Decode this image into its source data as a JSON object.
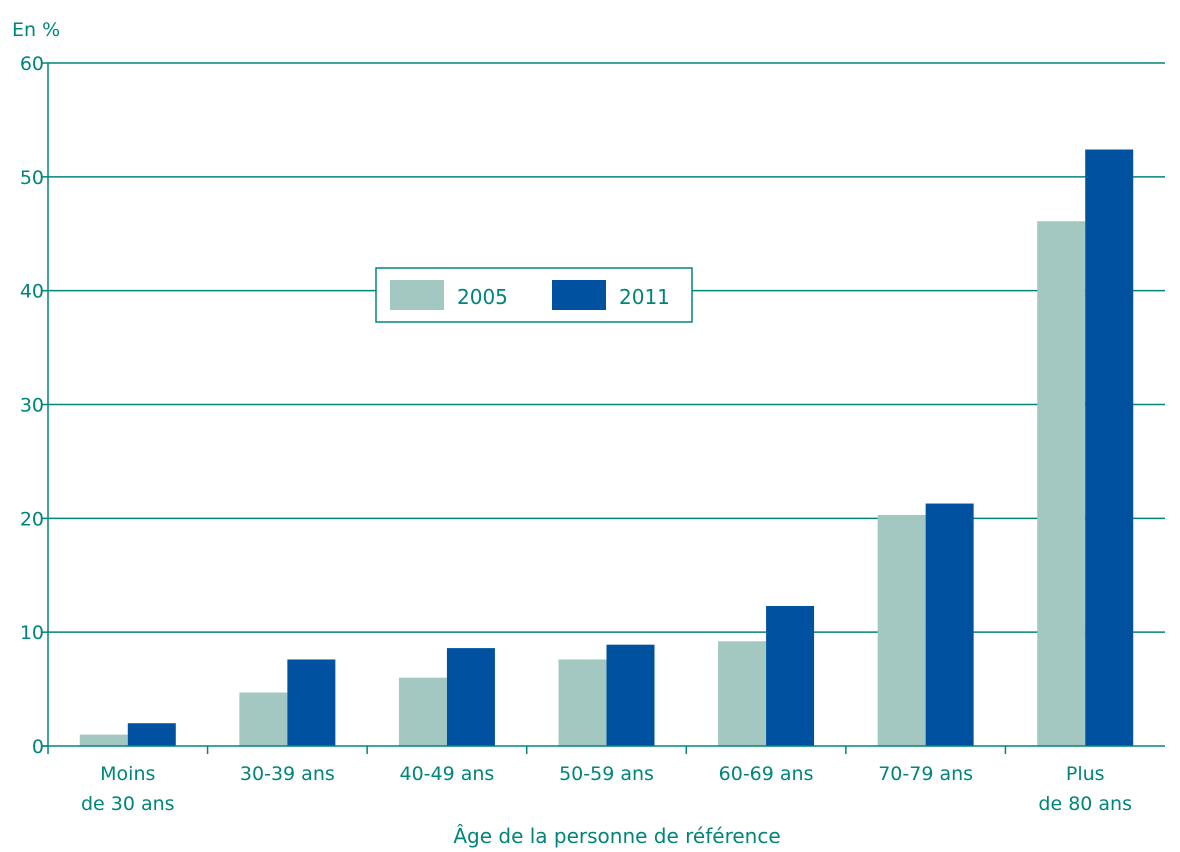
{
  "colors": {
    "axis": "#00857a",
    "text": "#00857a",
    "series_2005": "#a3c7c1",
    "series_2011": "#0052a0"
  },
  "chart_data": {
    "type": "bar",
    "unit_label": "En %",
    "xlabel": "Âge de la personne de référence",
    "ylabel": "",
    "ylim": [
      0,
      60
    ],
    "yticks": [
      0,
      10,
      20,
      30,
      40,
      50,
      60
    ],
    "grid": true,
    "legend_position": "center-left",
    "categories": [
      [
        "Moins",
        "de 30 ans"
      ],
      [
        "30-39 ans"
      ],
      [
        "40-49 ans"
      ],
      [
        "50-59 ans"
      ],
      [
        "60-69 ans"
      ],
      [
        "70-79 ans"
      ],
      [
        "Plus",
        "de 80 ans"
      ]
    ],
    "series": [
      {
        "name": "2005",
        "color": "#a3c7c1",
        "values": [
          1.0,
          4.7,
          6.0,
          7.6,
          9.2,
          20.3,
          46.1
        ]
      },
      {
        "name": "2011",
        "color": "#0052a0",
        "values": [
          2.0,
          7.6,
          8.6,
          8.9,
          12.3,
          21.3,
          52.4
        ]
      }
    ]
  }
}
